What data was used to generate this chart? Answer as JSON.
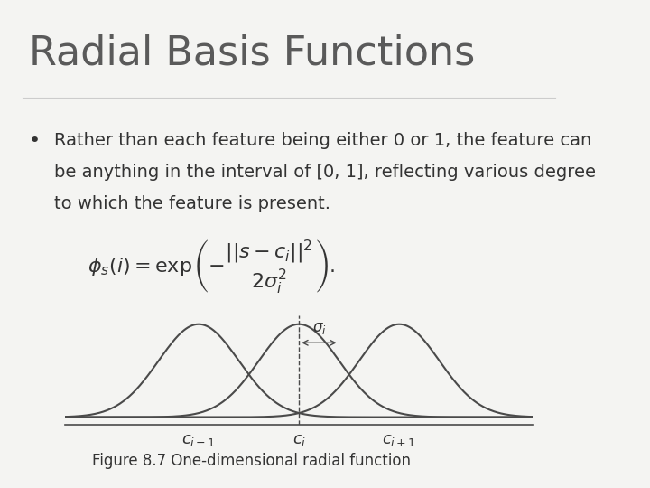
{
  "title": "Radial Basis Functions",
  "title_fontsize": 32,
  "title_color": "#5a5a5a",
  "bullet_fontsize": 14,
  "formula": "$\\phi_s(i) = \\exp\\left(-\\dfrac{||s - c_i||^2}{2\\sigma_i^2}\\right).$",
  "formula_fontsize": 16,
  "figure_caption": "Figure 8.7 One-dimensional radial function",
  "caption_fontsize": 12,
  "bg_color": "#f4f4f2",
  "sidebar_color": "#7a7053",
  "sidebar_light_color": "#b0a882",
  "centers": [
    -1.5,
    0.0,
    1.5
  ],
  "sigma": 0.6,
  "gaussian_color": "#4a4a4a",
  "gaussian_linewidth": 1.5,
  "axis_color": "#4a4a4a",
  "dashed_color": "#4a4a4a",
  "arrow_color": "#4a4a4a",
  "sigma_label": "$\\sigma_i$",
  "x_labels": [
    "$c_{i-1}$",
    "$c_i$",
    "$c_{i+1}$"
  ],
  "line1": "Rather than each feature being either 0 or 1, the feature can",
  "line2": "be anything in the interval of [0, 1], reflecting various degree",
  "line3": "to which the feature is present."
}
